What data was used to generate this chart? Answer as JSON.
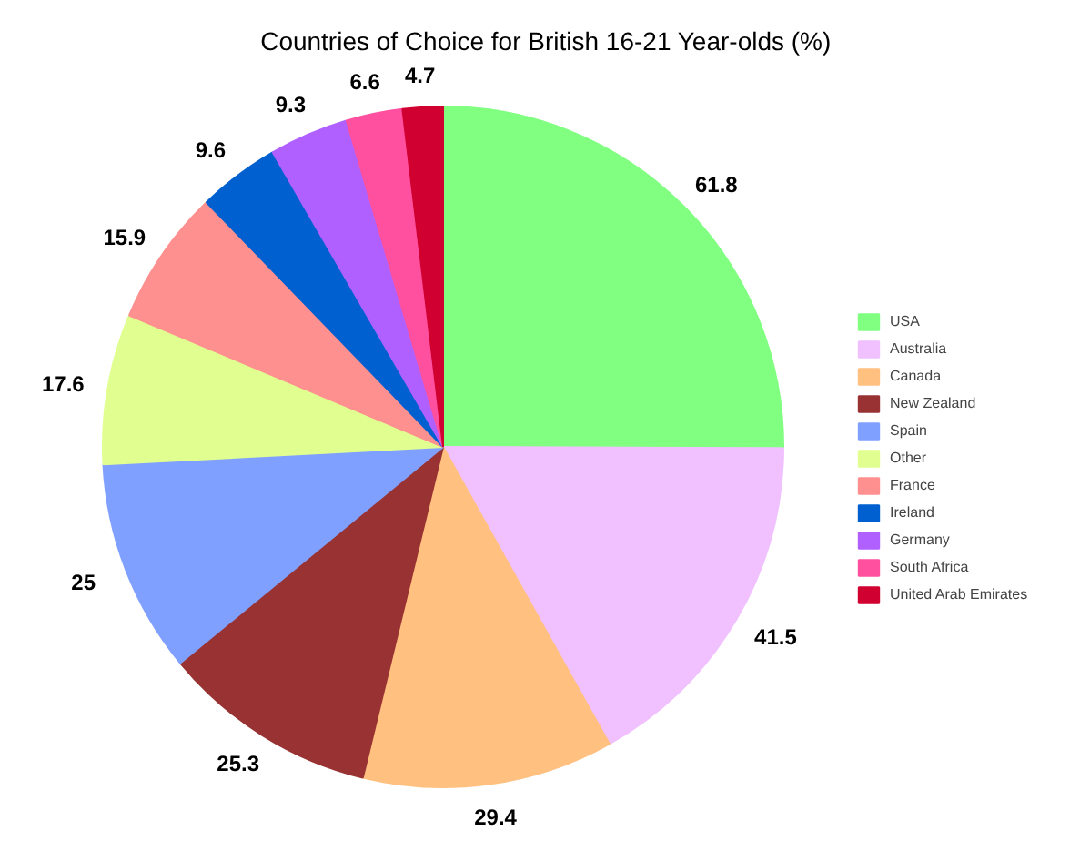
{
  "chart_data": {
    "type": "pie",
    "title": "Countries of Choice for British 16-21 Year-olds (%)",
    "categories": [
      "USA",
      "Australia",
      "Canada",
      "New Zealand",
      "Spain",
      "Other",
      "France",
      "Ireland",
      "Germany",
      "South Africa",
      "United Arab Emirates"
    ],
    "values": [
      61.8,
      41.5,
      29.4,
      25.3,
      25,
      17.6,
      15.9,
      9.6,
      9.3,
      6.6,
      4.7
    ],
    "colors": [
      "#80ff80",
      "#f0c0ff",
      "#ffc080",
      "#993333",
      "#80a0ff",
      "#e0ff90",
      "#ff9090",
      "#0060d0",
      "#b060ff",
      "#ff50a0",
      "#d00030"
    ],
    "data_labels": true,
    "legend": "right"
  }
}
